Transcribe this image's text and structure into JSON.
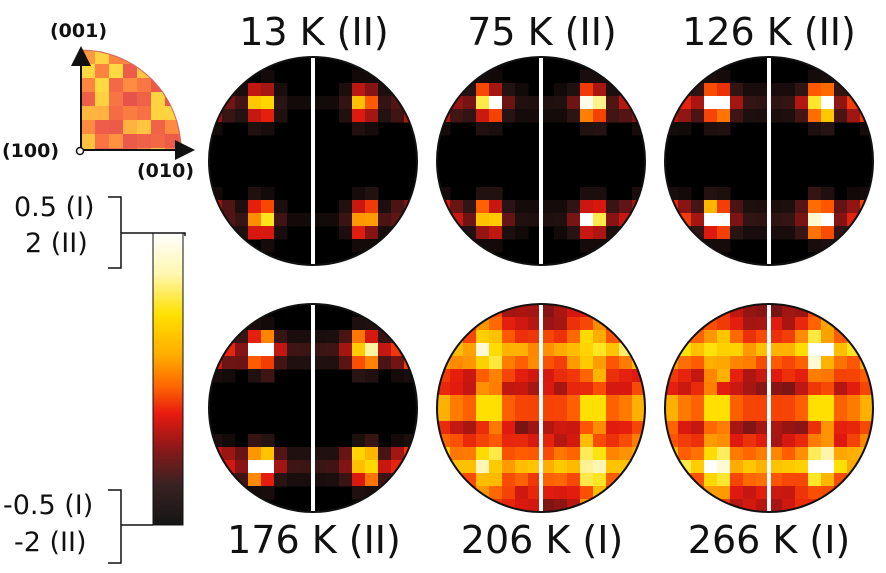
{
  "inset": {
    "axis_top": "(001)",
    "axis_origin": "(100)",
    "axis_right": "(010)"
  },
  "colorbar": {
    "top_I": "0.5 (I)",
    "top_II": "2 (II)",
    "bottom_I": "-0.5 (I)",
    "bottom_II": "-2 (II)",
    "colors": [
      "#ffffff",
      "#fff6a0",
      "#ffe000",
      "#ffb000",
      "#ff7a00",
      "#ff3a00",
      "#e01010",
      "#7a1414",
      "#2a1a1a",
      "#000000"
    ]
  },
  "panels": [
    {
      "label": "13 K (II)",
      "intensity": 0.25
    },
    {
      "label": "75 K (II)",
      "intensity": 0.4
    },
    {
      "label": "126 K (II)",
      "intensity": 0.55
    },
    {
      "label": "176 K (II)",
      "intensity": 0.6
    },
    {
      "label": "206 K (I)",
      "intensity": 0.95
    },
    {
      "label": "266 K (I)",
      "intensity": 1.0
    }
  ]
}
